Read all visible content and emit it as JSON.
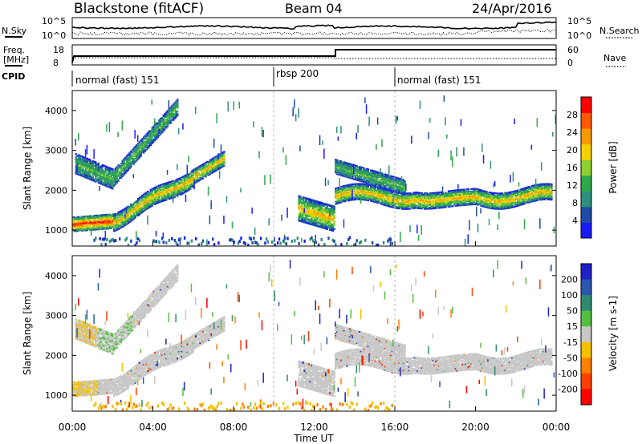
{
  "header": {
    "title": "Blackstone (fitACF)",
    "beam": "Beam 04",
    "date": "24/Apr/2016"
  },
  "summary_panels": {
    "nsky": {
      "label": "N.Sky",
      "ticks": [
        "10^5",
        "10^0"
      ]
    },
    "nsearch": {
      "label": "N.Search",
      "ticks": [
        "10^5",
        "10^0"
      ]
    },
    "freq": {
      "label": "Freq.",
      "unit": "[MHz]",
      "ticks": [
        "18",
        "8"
      ]
    },
    "nave": {
      "label": "Nave",
      "ticks": [
        "60",
        "0"
      ]
    },
    "cpid": {
      "label": "CPID",
      "segments": [
        {
          "name": "normal (fast) 151",
          "start_h": 0,
          "end_h": 10
        },
        {
          "name": "rbsp 200",
          "start_h": 10,
          "end_h": 16
        },
        {
          "name": "normal (fast) 151",
          "start_h": 16,
          "end_h": 24
        }
      ]
    }
  },
  "chart_data": [
    {
      "type": "heatmap",
      "title": "",
      "xlabel": "",
      "ylabel": "Slant Range [km]",
      "xlim": [
        0,
        24
      ],
      "ylim": [
        600,
        4500
      ],
      "y_ticks": [
        {
          "value": 1000,
          "label": "1000"
        },
        {
          "value": 2000,
          "label": "2000"
        },
        {
          "value": 3000,
          "label": "3000"
        },
        {
          "value": 4000,
          "label": "4000"
        }
      ],
      "colorbar": {
        "label": "Power [dB]",
        "range": [
          0,
          32
        ],
        "tick_values": [
          4,
          8,
          12,
          16,
          20,
          24,
          28
        ],
        "tick_labels": [
          "4",
          "8",
          "12",
          "16",
          "20",
          "24",
          "28"
        ],
        "colors": [
          "#1a1aff",
          "#1f4aa8",
          "#2f8f7d",
          "#2da84a",
          "#8fcf30",
          "#f5d000",
          "#f59a00",
          "#ff5a00",
          "#ff0000"
        ]
      }
    },
    {
      "type": "heatmap",
      "title": "",
      "xlabel": "Time UT",
      "ylabel": "Slant Range [km]",
      "xlim": [
        0,
        24
      ],
      "ylim": [
        600,
        4500
      ],
      "x_tick_values": [
        0,
        4,
        8,
        12,
        16,
        20,
        24
      ],
      "x_tick_labels": [
        "00:00",
        "04:00",
        "08:00",
        "12:00",
        "16:00",
        "20:00",
        "00:00"
      ],
      "y_ticks": [
        {
          "value": 1000,
          "label": "1000"
        },
        {
          "value": 2000,
          "label": "2000"
        },
        {
          "value": 3000,
          "label": "3000"
        },
        {
          "value": 4000,
          "label": "4000"
        }
      ],
      "colorbar": {
        "label": "Velocity [m s-1]",
        "tick_labels": [
          "200",
          "100",
          "50",
          "15",
          "-15",
          "-50",
          "-100",
          "-200"
        ],
        "colors": [
          "#2020c8",
          "#2a58b0",
          "#2f8a70",
          "#55c040",
          "#c8c8c8",
          "#f5c000",
          "#ff8000",
          "#ff4000",
          "#ff0000"
        ]
      }
    }
  ]
}
